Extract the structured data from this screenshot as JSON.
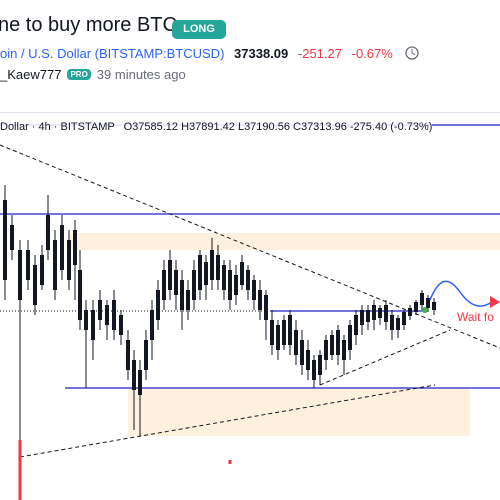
{
  "idea": {
    "title": "ne to buy more BTC",
    "badge": "LONG",
    "symbol": "oin / U.S. Dollar (BITSTAMP:BTCUSD)",
    "price": "37338.09",
    "change": "-251.27",
    "change_percent": "-0.67%"
  },
  "author": {
    "name": "_Kaew777",
    "badge": "PRO",
    "time": "39 minutes ago"
  },
  "chart": {
    "symbol": "Dollar · 4h · BITSTAMP",
    "ohlc": "O37585.12 H37891.42 L37190.56 C37313.96 -275.40 (-0.73%)",
    "annotation": "Wait fo"
  }
}
